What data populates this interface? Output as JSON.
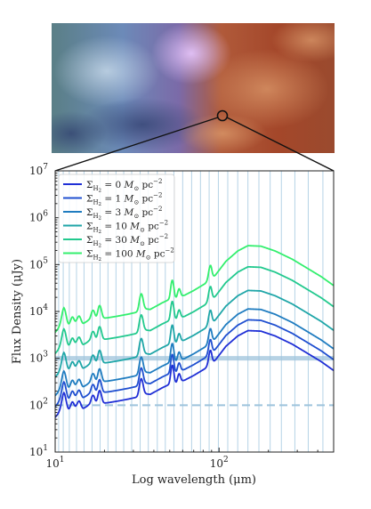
{
  "chart_data": {
    "type": "line",
    "title": "",
    "xlabel": "Log wavelength (μm)",
    "ylabel": "Flux Density (μJy)",
    "xscale": "log",
    "yscale": "log",
    "xlim": [
      10,
      500
    ],
    "ylim": [
      10,
      10000000
    ],
    "x_ticks": [
      {
        "value": 10,
        "mant": "10",
        "exp": "1"
      },
      {
        "value": 100,
        "mant": "10",
        "exp": "2"
      }
    ],
    "y_ticks": [
      {
        "value": 10,
        "mant": "10",
        "exp": "1"
      },
      {
        "value": 100,
        "mant": "10",
        "exp": "2"
      },
      {
        "value": 1000,
        "mant": "10",
        "exp": "3"
      },
      {
        "value": 10000,
        "mant": "10",
        "exp": "4"
      },
      {
        "value": 100000,
        "mant": "10",
        "exp": "5"
      },
      {
        "value": 1000000,
        "mant": "10",
        "exp": "6"
      },
      {
        "value": 10000000,
        "mant": "10",
        "exp": "7"
      }
    ],
    "legend_position": "top-left",
    "series": [
      {
        "name": "Σ_H2 = 0 M⊙ pc⁻²",
        "label_value": "0",
        "color": "#1f2fd6",
        "scale": 1
      },
      {
        "name": "Σ_H2 = 1 M⊙ pc⁻²",
        "label_value": "1",
        "color": "#1f4fd0",
        "scale": 1.7
      },
      {
        "name": "Σ_H2 = 3 M⊙ pc⁻²",
        "label_value": "3",
        "color": "#1f7cc0",
        "scale": 2.9
      },
      {
        "name": "Σ_H2 = 10 M⊙ pc⁻²",
        "label_value": "10",
        "color": "#1fa6a8",
        "scale": 7.2
      },
      {
        "name": "Σ_H2 = 30 M⊙ pc⁻²",
        "label_value": "30",
        "color": "#22c98e",
        "scale": 23
      },
      {
        "name": "Σ_H2 = 100 M⊙ pc⁻²",
        "label_value": "100",
        "color": "#33ef6e",
        "scale": 65
      }
    ],
    "base_curve": {
      "x": [
        10,
        10.3,
        10.6,
        11.0,
        11.3,
        11.6,
        12.5,
        13.5,
        14.8,
        16.0,
        17.0,
        18.5,
        19.6,
        21,
        24,
        28,
        32,
        34,
        35.5,
        38,
        45,
        51,
        53,
        55,
        58,
        62,
        70,
        82,
        89,
        91,
        95,
        110,
        130,
        150,
        180,
        220,
        280,
        350,
        420,
        500
      ],
      "y": [
        55,
        62,
        70,
        72,
        80,
        76,
        75,
        90,
        84,
        100,
        95,
        115,
        110,
        113,
        122,
        135,
        150,
        162,
        175,
        170,
        235,
        290,
        305,
        295,
        320,
        345,
        430,
        600,
        790,
        780,
        920,
        1800,
        3000,
        3900,
        3800,
        3000,
        2000,
        1250,
        850,
        550
      ]
    },
    "peaks": [
      {
        "x": 11.3,
        "amp": 2.3,
        "w": 0.012
      },
      {
        "x": 12.7,
        "amp": 1.5,
        "w": 0.01
      },
      {
        "x": 14.0,
        "amp": 1.4,
        "w": 0.01
      },
      {
        "x": 17.0,
        "amp": 1.7,
        "w": 0.01
      },
      {
        "x": 18.7,
        "amp": 1.8,
        "w": 0.01
      },
      {
        "x": 33.5,
        "amp": 2.3,
        "w": 0.01
      },
      {
        "x": 51.8,
        "amp": 2.4,
        "w": 0.008
      },
      {
        "x": 57.0,
        "amp": 1.5,
        "w": 0.008
      },
      {
        "x": 88.4,
        "amp": 1.9,
        "w": 0.009
      }
    ],
    "hlines": [
      {
        "y": 1000,
        "style": "solid",
        "color": "#9ec4dc"
      },
      {
        "y": 100,
        "style": "dashed",
        "color": "#9ec4dc"
      }
    ],
    "band_lines_x": [
      10.5,
      11.2,
      12.2,
      13.5,
      15.0,
      16.8,
      18.8,
      21.0,
      23.5,
      26.2,
      29.3,
      33,
      37,
      42,
      47,
      53,
      60,
      68,
      77,
      87,
      99,
      113,
      130,
      150,
      175,
      205,
      240,
      290,
      350,
      430
    ],
    "band_color": "#b5d3e6"
  }
}
